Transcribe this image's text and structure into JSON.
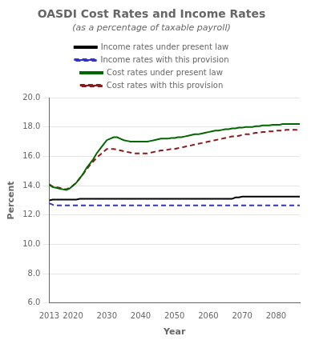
{
  "chart_data": {
    "type": "line",
    "title": "OASDI Cost Rates and Income Rates",
    "subtitle": "(as a percentage of taxable payroll)",
    "xlabel": "Year",
    "ylabel": "Percent",
    "x": [
      2013,
      2014,
      2015,
      2016,
      2017,
      2018,
      2019,
      2020,
      2021,
      2022,
      2023,
      2024,
      2025,
      2026,
      2027,
      2028,
      2029,
      2030,
      2031,
      2032,
      2033,
      2034,
      2035,
      2036,
      2037,
      2038,
      2039,
      2040,
      2041,
      2042,
      2043,
      2044,
      2045,
      2046,
      2047,
      2048,
      2049,
      2050,
      2051,
      2052,
      2053,
      2054,
      2055,
      2056,
      2057,
      2058,
      2059,
      2060,
      2061,
      2062,
      2063,
      2064,
      2065,
      2066,
      2067,
      2068,
      2069,
      2070,
      2071,
      2072,
      2073,
      2074,
      2075,
      2076,
      2077,
      2078,
      2079,
      2080,
      2081,
      2082,
      2083,
      2084,
      2085,
      2086,
      2087
    ],
    "series": [
      {
        "name": "Income rates under present law",
        "color": "#000000",
        "line_style": "solid",
        "values": [
          13.0,
          13.05,
          13.05,
          13.05,
          13.05,
          13.05,
          13.05,
          13.05,
          13.05,
          13.1,
          13.1,
          13.1,
          13.1,
          13.1,
          13.1,
          13.1,
          13.1,
          13.1,
          13.1,
          13.1,
          13.1,
          13.1,
          13.1,
          13.1,
          13.1,
          13.1,
          13.1,
          13.1,
          13.1,
          13.1,
          13.1,
          13.1,
          13.1,
          13.1,
          13.1,
          13.1,
          13.1,
          13.1,
          13.1,
          13.1,
          13.1,
          13.1,
          13.1,
          13.1,
          13.1,
          13.1,
          13.1,
          13.1,
          13.1,
          13.1,
          13.1,
          13.1,
          13.1,
          13.1,
          13.1,
          13.2,
          13.2,
          13.25,
          13.25,
          13.25,
          13.25,
          13.25,
          13.25,
          13.25,
          13.25,
          13.25,
          13.25,
          13.25,
          13.25,
          13.25,
          13.25,
          13.25,
          13.25,
          13.25,
          13.25
        ]
      },
      {
        "name": "Income rates with this provision",
        "color": "#3333cc",
        "line_style": "dashed",
        "values": [
          12.8,
          12.7,
          12.65,
          12.65,
          12.65,
          12.65,
          12.65,
          12.65,
          12.65,
          12.65,
          12.65,
          12.65,
          12.65,
          12.65,
          12.65,
          12.65,
          12.65,
          12.65,
          12.65,
          12.65,
          12.65,
          12.65,
          12.65,
          12.65,
          12.65,
          12.65,
          12.65,
          12.65,
          12.65,
          12.65,
          12.65,
          12.65,
          12.65,
          12.65,
          12.65,
          12.65,
          12.65,
          12.65,
          12.65,
          12.65,
          12.65,
          12.65,
          12.65,
          12.65,
          12.65,
          12.65,
          12.65,
          12.65,
          12.65,
          12.65,
          12.65,
          12.65,
          12.65,
          12.65,
          12.65,
          12.65,
          12.65,
          12.65,
          12.65,
          12.65,
          12.65,
          12.65,
          12.65,
          12.65,
          12.65,
          12.65,
          12.65,
          12.65,
          12.65,
          12.65,
          12.65,
          12.65,
          12.65,
          12.65,
          12.65
        ]
      },
      {
        "name": "Cost rates under present law",
        "color": "#006600",
        "line_style": "solid",
        "values": [
          14.05,
          13.9,
          13.85,
          13.8,
          13.75,
          13.7,
          13.8,
          14.0,
          14.2,
          14.5,
          14.8,
          15.2,
          15.5,
          15.8,
          16.2,
          16.5,
          16.8,
          17.1,
          17.2,
          17.3,
          17.3,
          17.2,
          17.1,
          17.05,
          17.0,
          17.0,
          17.0,
          17.0,
          17.0,
          17.0,
          17.05,
          17.1,
          17.15,
          17.2,
          17.2,
          17.2,
          17.25,
          17.25,
          17.3,
          17.3,
          17.35,
          17.4,
          17.45,
          17.5,
          17.5,
          17.55,
          17.6,
          17.65,
          17.7,
          17.75,
          17.75,
          17.8,
          17.85,
          17.85,
          17.9,
          17.9,
          17.95,
          17.95,
          18.0,
          18.0,
          18.0,
          18.05,
          18.05,
          18.1,
          18.1,
          18.1,
          18.15,
          18.15,
          18.15,
          18.2,
          18.2,
          18.2,
          18.2,
          18.2,
          18.2
        ]
      },
      {
        "name": "Cost rates with this provision",
        "color": "#8b1a1a",
        "line_style": "dashed",
        "values": [
          14.1,
          13.95,
          13.9,
          13.85,
          13.8,
          13.75,
          13.85,
          14.0,
          14.2,
          14.5,
          14.8,
          15.1,
          15.4,
          15.65,
          15.9,
          16.1,
          16.3,
          16.5,
          16.5,
          16.5,
          16.45,
          16.4,
          16.35,
          16.3,
          16.25,
          16.2,
          16.2,
          16.2,
          16.2,
          16.2,
          16.25,
          16.3,
          16.35,
          16.4,
          16.4,
          16.45,
          16.5,
          16.5,
          16.55,
          16.6,
          16.65,
          16.7,
          16.75,
          16.8,
          16.85,
          16.9,
          16.95,
          17.0,
          17.05,
          17.1,
          17.15,
          17.2,
          17.25,
          17.3,
          17.35,
          17.35,
          17.4,
          17.45,
          17.5,
          17.5,
          17.55,
          17.6,
          17.6,
          17.65,
          17.65,
          17.7,
          17.7,
          17.75,
          17.75,
          17.75,
          17.8,
          17.8,
          17.8,
          17.8,
          17.85
        ]
      }
    ],
    "xlim": [
      2013,
      2087
    ],
    "xticks": [
      2013,
      2020,
      2030,
      2040,
      2050,
      2060,
      2070,
      2080
    ],
    "ylim": [
      6.0,
      20.0
    ],
    "yticks": [
      {
        "value": 6.0,
        "label": "6.0"
      },
      {
        "value": 8.0,
        "label": "8.0"
      },
      {
        "value": 10.0,
        "label": "10.0"
      },
      {
        "value": 12.0,
        "label": "12.0"
      },
      {
        "value": 14.0,
        "label": "14.0"
      },
      {
        "value": 16.0,
        "label": "16.0"
      },
      {
        "value": 18.0,
        "label": "18.0"
      },
      {
        "value": 20.0,
        "label": "20.0"
      }
    ],
    "grid": "y",
    "legend": "top"
  }
}
